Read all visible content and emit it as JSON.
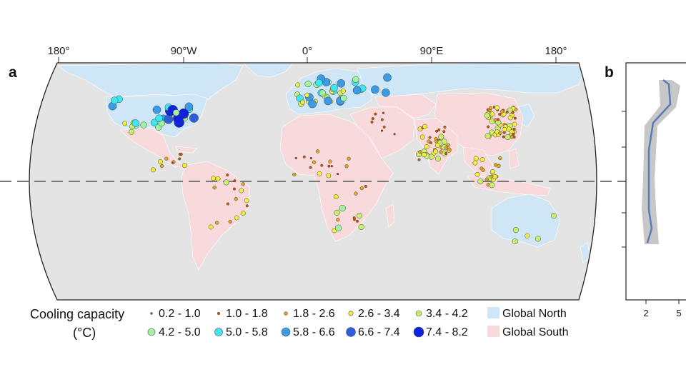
{
  "panel_a": {
    "letter": "a",
    "longitude_labels": [
      "180°",
      "90°W",
      "0°",
      "90°E",
      "180°"
    ]
  },
  "panel_b": {
    "letter": "b",
    "x_ticks": [
      "2",
      "5"
    ]
  },
  "legend": {
    "title_line1": "Cooling capacity",
    "title_line2": "(°C)",
    "bins": [
      {
        "label": "0.2 - 1.0",
        "color": "#c0392b"
      },
      {
        "label": "1.0 - 1.8",
        "color": "#d35400"
      },
      {
        "label": "1.8 - 2.6",
        "color": "#e6a31e"
      },
      {
        "label": "2.6 - 3.4",
        "color": "#f2ee3a"
      },
      {
        "label": "3.4 - 4.2",
        "color": "#c8ee6c"
      },
      {
        "label": "4.2 - 5.0",
        "color": "#9ef2a0"
      },
      {
        "label": "5.0 - 5.8",
        "color": "#3fe6f0"
      },
      {
        "label": "5.8 - 6.6",
        "color": "#3a9be6"
      },
      {
        "label": "6.6 - 7.4",
        "color": "#2e5fd8"
      },
      {
        "label": "7.4 - 8.2",
        "color": "#0f22e0"
      }
    ],
    "regions": [
      {
        "label": "Global North",
        "color": "#cfe6f7"
      },
      {
        "label": "Global South",
        "color": "#f8d9dc"
      }
    ]
  },
  "colors": {
    "ocean": "#e4e4e4",
    "north": "#cfe6f7",
    "south": "#f8d9dc",
    "other_land": "#d5d5d5",
    "median_line": "#5b7bb5",
    "band": "#bdbdbd"
  }
}
